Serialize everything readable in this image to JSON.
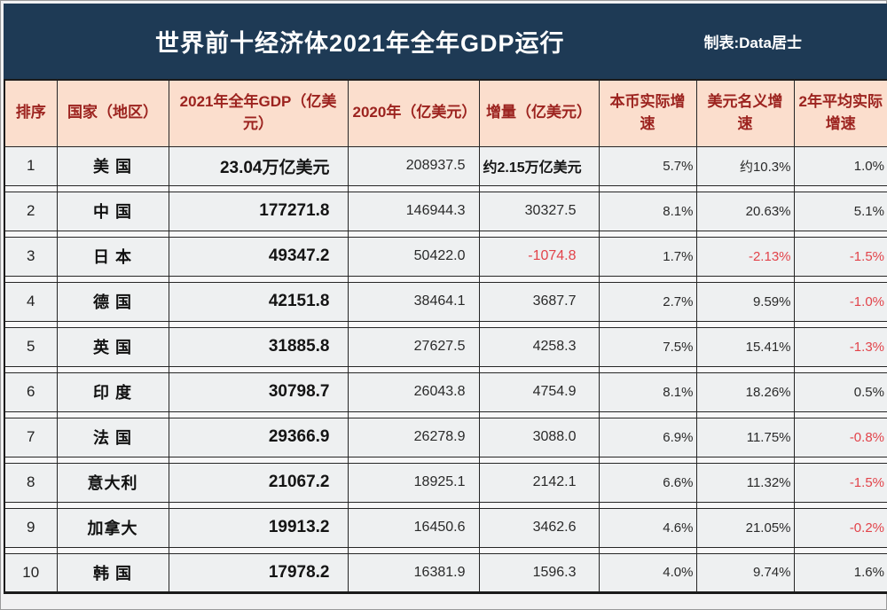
{
  "title_bar": {
    "title": "世界前十经济体2021年全年GDP运行",
    "credit": "制表:Data居士"
  },
  "colors": {
    "title_bg": "#1e3a55",
    "header_bg": "#fbdecd",
    "header_text": "#9c231f",
    "row_bg": "#eef0f1",
    "negative_text": "#e2434a"
  },
  "table": {
    "headers": [
      "排序",
      "国家（地区）",
      "2021年全年GDP（亿美元）",
      "2020年（亿美元）",
      "增量（亿美元）",
      "本币实际增速",
      "美元名义增速",
      "2年平均实际增速"
    ],
    "rows": [
      {
        "rank": "1",
        "country": "美 国",
        "gdp_2021": "23.04万亿美元",
        "gdp_2020": "208937.5",
        "delta": "约2.15万亿美元",
        "real_growth": "5.7%",
        "nominal_growth": "约10.3%",
        "avg2_growth": "1.0%"
      },
      {
        "rank": "2",
        "country": "中 国",
        "gdp_2021": "177271.8",
        "gdp_2020": "146944.3",
        "delta": "30327.5",
        "real_growth": "8.1%",
        "nominal_growth": "20.63%",
        "avg2_growth": "5.1%"
      },
      {
        "rank": "3",
        "country": "日 本",
        "gdp_2021": "49347.2",
        "gdp_2020": "50422.0",
        "delta": "-1074.8",
        "real_growth": "1.7%",
        "nominal_growth": "-2.13%",
        "avg2_growth": "-1.5%"
      },
      {
        "rank": "4",
        "country": "德 国",
        "gdp_2021": "42151.8",
        "gdp_2020": "38464.1",
        "delta": "3687.7",
        "real_growth": "2.7%",
        "nominal_growth": "9.59%",
        "avg2_growth": "-1.0%"
      },
      {
        "rank": "5",
        "country": "英 国",
        "gdp_2021": "31885.8",
        "gdp_2020": "27627.5",
        "delta": "4258.3",
        "real_growth": "7.5%",
        "nominal_growth": "15.41%",
        "avg2_growth": "-1.3%"
      },
      {
        "rank": "6",
        "country": "印 度",
        "gdp_2021": "30798.7",
        "gdp_2020": "26043.8",
        "delta": "4754.9",
        "real_growth": "8.1%",
        "nominal_growth": "18.26%",
        "avg2_growth": "0.5%"
      },
      {
        "rank": "7",
        "country": "法 国",
        "gdp_2021": "29366.9",
        "gdp_2020": "26278.9",
        "delta": "3088.0",
        "real_growth": "6.9%",
        "nominal_growth": "11.75%",
        "avg2_growth": "-0.8%"
      },
      {
        "rank": "8",
        "country": "意大利",
        "gdp_2021": "21067.2",
        "gdp_2020": "18925.1",
        "delta": "2142.1",
        "real_growth": "6.6%",
        "nominal_growth": "11.32%",
        "avg2_growth": "-1.5%"
      },
      {
        "rank": "9",
        "country": "加拿大",
        "gdp_2021": "19913.2",
        "gdp_2020": "16450.6",
        "delta": "3462.6",
        "real_growth": "4.6%",
        "nominal_growth": "21.05%",
        "avg2_growth": "-0.2%"
      },
      {
        "rank": "10",
        "country": "韩 国",
        "gdp_2021": "17978.2",
        "gdp_2020": "16381.9",
        "delta": "1596.3",
        "real_growth": "4.0%",
        "nominal_growth": "9.74%",
        "avg2_growth": "1.6%"
      }
    ]
  },
  "chart_data": {
    "type": "table",
    "title": "世界前十经济体2021年全年GDP运行",
    "subtitle": "制表:Data居士",
    "columns": [
      "排序",
      "国家（地区）",
      "2021年全年GDP（亿美元）",
      "2020年（亿美元）",
      "增量（亿美元）",
      "本币实际增速",
      "美元名义增速",
      "2年平均实际增速"
    ],
    "rows": [
      [
        "1",
        "美 国",
        "23.04万亿美元",
        "208937.5",
        "约2.15万亿美元",
        "5.7%",
        "约10.3%",
        "1.0%"
      ],
      [
        "2",
        "中 国",
        "177271.8",
        "146944.3",
        "30327.5",
        "8.1%",
        "20.63%",
        "5.1%"
      ],
      [
        "3",
        "日 本",
        "49347.2",
        "50422.0",
        "-1074.8",
        "1.7%",
        "-2.13%",
        "-1.5%"
      ],
      [
        "4",
        "德 国",
        "42151.8",
        "38464.1",
        "3687.7",
        "2.7%",
        "9.59%",
        "-1.0%"
      ],
      [
        "5",
        "英 国",
        "31885.8",
        "27627.5",
        "4258.3",
        "7.5%",
        "15.41%",
        "-1.3%"
      ],
      [
        "6",
        "印 度",
        "30798.7",
        "26043.8",
        "4754.9",
        "8.1%",
        "18.26%",
        "0.5%"
      ],
      [
        "7",
        "法 国",
        "29366.9",
        "26278.9",
        "3088.0",
        "6.9%",
        "11.75%",
        "-0.8%"
      ],
      [
        "8",
        "意大利",
        "21067.2",
        "18925.1",
        "2142.1",
        "6.6%",
        "11.32%",
        "-1.5%"
      ],
      [
        "9",
        "加拿大",
        "19913.2",
        "16450.6",
        "3462.6",
        "4.6%",
        "21.05%",
        "-0.2%"
      ],
      [
        "10",
        "韩 国",
        "17978.2",
        "16381.9",
        "1596.3",
        "4.0%",
        "9.74%",
        "1.6%"
      ]
    ],
    "notes": "negative values rendered in red (#e2434a); row 1 GDP shown in trillions of USD"
  }
}
